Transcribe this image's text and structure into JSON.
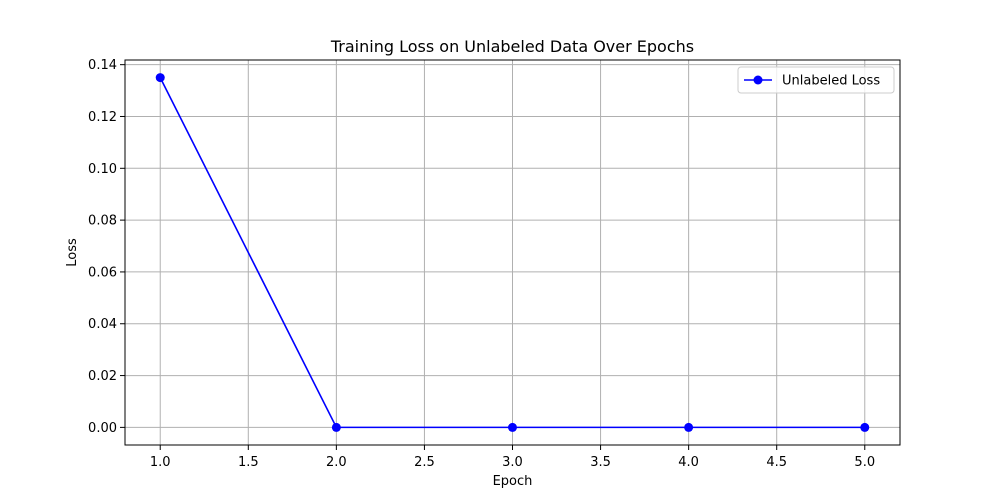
{
  "chart_data": {
    "type": "line",
    "title": "Training Loss on Unlabeled Data Over Epochs",
    "xlabel": "Epoch",
    "ylabel": "Loss",
    "xlim": [
      0.8,
      5.2
    ],
    "ylim": [
      -0.0068,
      0.1418
    ],
    "x_ticks": [
      1.0,
      1.5,
      2.0,
      2.5,
      3.0,
      3.5,
      4.0,
      4.5,
      5.0
    ],
    "x_tick_labels": [
      "1.0",
      "1.5",
      "2.0",
      "2.5",
      "3.0",
      "3.5",
      "4.0",
      "4.5",
      "5.0"
    ],
    "y_ticks": [
      0.0,
      0.02,
      0.04,
      0.06,
      0.08,
      0.1,
      0.12,
      0.14
    ],
    "y_tick_labels": [
      "0.00",
      "0.02",
      "0.04",
      "0.06",
      "0.08",
      "0.10",
      "0.12",
      "0.14"
    ],
    "grid": true,
    "legend_position": "top-right",
    "series": [
      {
        "name": "Unlabeled Loss",
        "color": "#0000ff",
        "marker": "circle",
        "x": [
          1.0,
          2.0,
          3.0,
          4.0,
          5.0
        ],
        "y": [
          0.135,
          0.0,
          0.0,
          0.0,
          0.0
        ]
      }
    ]
  }
}
